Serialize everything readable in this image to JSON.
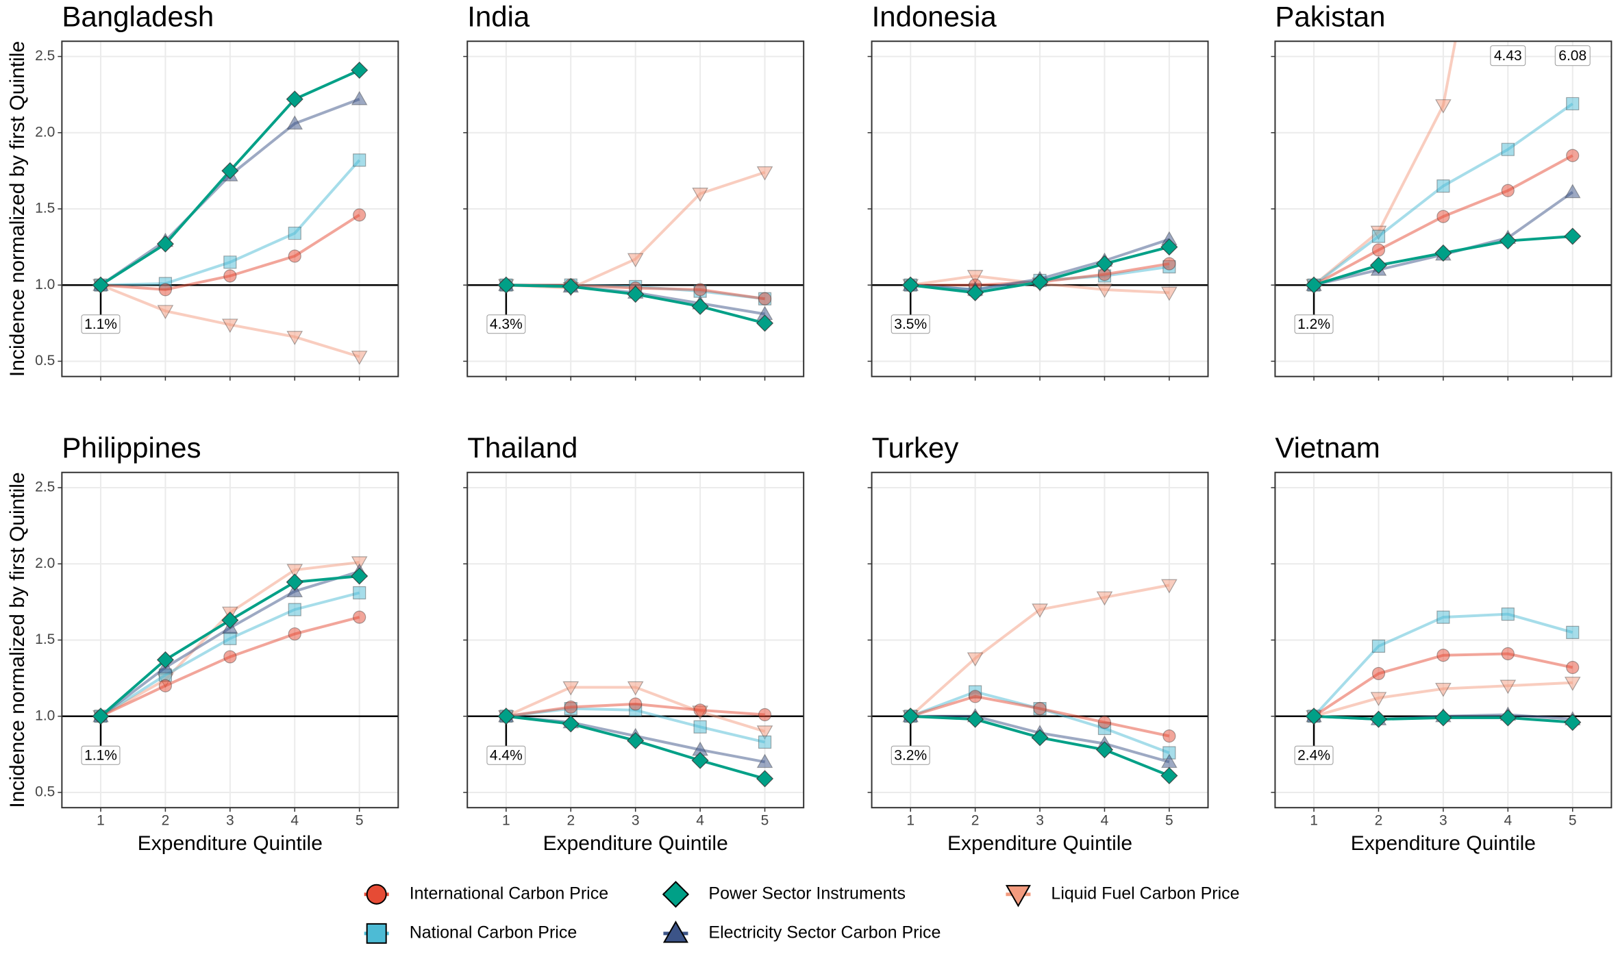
{
  "chart_data": {
    "type": "line",
    "y_label": "Incidence normalized by first Quintile",
    "x_label": "Expenditure Quintile",
    "x": [
      1,
      2,
      3,
      4,
      5
    ],
    "xlim": [
      0.4,
      5.6
    ],
    "xticks": [
      1,
      2,
      3,
      4,
      5
    ],
    "ylim": [
      0.4,
      2.6
    ],
    "yticks": [
      0.5,
      {
        "value": 1,
        "label": "1.0"
      },
      1.5,
      {
        "value": 2,
        "label": "2.0"
      },
      2.5
    ],
    "reference_line": 1,
    "grid": true,
    "series": [
      {
        "name": "International Carbon Price",
        "color": "#e64b35",
        "opacity": 0.5,
        "marker": "circle"
      },
      {
        "name": "National Carbon Price",
        "color": "#4dbbd5",
        "opacity": 0.5,
        "marker": "square"
      },
      {
        "name": "Power Sector Instruments",
        "color": "#00a087",
        "opacity": 1,
        "marker": "diamond"
      },
      {
        "name": "Electricity Sector Carbon Price",
        "color": "#3c5488",
        "opacity": 0.5,
        "marker": "triangle-up"
      },
      {
        "name": "Liquid Fuel Carbon Price",
        "color": "#f39b7f",
        "opacity": 0.5,
        "marker": "triangle-down"
      }
    ],
    "panels": [
      {
        "title": "Bangladesh",
        "base_label": "1.1%",
        "series_values": [
          [
            1,
            0.97,
            1.06,
            1.19,
            1.46
          ],
          [
            1,
            1.01,
            1.15,
            1.34,
            1.82
          ],
          [
            1,
            1.27,
            1.75,
            2.22,
            2.41
          ],
          [
            1,
            1.29,
            1.72,
            2.06,
            2.22
          ],
          [
            1,
            0.83,
            0.74,
            0.66,
            0.53
          ]
        ]
      },
      {
        "title": "India",
        "base_label": "4.3%",
        "series_values": [
          [
            1,
            1.0,
            0.98,
            0.97,
            0.91
          ],
          [
            1,
            1.0,
            0.99,
            0.96,
            0.91
          ],
          [
            1,
            0.99,
            0.94,
            0.86,
            0.75
          ],
          [
            1,
            0.99,
            0.95,
            0.88,
            0.81
          ],
          [
            1,
            0.98,
            1.17,
            1.6,
            1.74
          ]
        ]
      },
      {
        "title": "Indonesia",
        "base_label": "3.5%",
        "series_values": [
          [
            1,
            1.0,
            1.02,
            1.07,
            1.14
          ],
          [
            1,
            0.97,
            1.03,
            1.06,
            1.12
          ],
          [
            1,
            0.95,
            1.02,
            1.14,
            1.25
          ],
          [
            1,
            0.97,
            1.04,
            1.16,
            1.3
          ],
          [
            1,
            1.06,
            1.01,
            0.97,
            0.95
          ]
        ]
      },
      {
        "title": "Pakistan",
        "base_label": "1.2%",
        "series_values": [
          [
            1,
            1.23,
            1.45,
            1.62,
            1.85
          ],
          [
            1,
            1.32,
            1.65,
            1.89,
            2.19
          ],
          [
            1,
            1.13,
            1.21,
            1.29,
            1.32
          ],
          [
            1,
            1.1,
            1.2,
            1.31,
            1.61
          ],
          [
            1,
            1.35,
            2.18,
            4.43,
            6.08
          ]
        ]
      },
      {
        "title": "Philippines",
        "base_label": "1.1%",
        "series_values": [
          [
            1,
            1.2,
            1.39,
            1.54,
            1.65
          ],
          [
            1,
            1.27,
            1.51,
            1.7,
            1.81
          ],
          [
            1,
            1.37,
            1.63,
            1.88,
            1.92
          ],
          [
            1,
            1.32,
            1.58,
            1.82,
            1.95
          ],
          [
            1,
            1.24,
            1.68,
            1.96,
            2.01
          ]
        ]
      },
      {
        "title": "Thailand",
        "base_label": "4.4%",
        "series_values": [
          [
            1,
            1.06,
            1.08,
            1.04,
            1.01
          ],
          [
            1,
            1.05,
            1.04,
            0.93,
            0.83
          ],
          [
            1,
            0.95,
            0.84,
            0.71,
            0.59
          ],
          [
            1,
            0.96,
            0.87,
            0.78,
            0.7
          ],
          [
            1,
            1.19,
            1.19,
            1.03,
            0.9
          ]
        ]
      },
      {
        "title": "Turkey",
        "base_label": "3.2%",
        "series_values": [
          [
            1,
            1.13,
            1.05,
            0.96,
            0.87
          ],
          [
            1,
            1.16,
            1.05,
            0.92,
            0.76
          ],
          [
            1,
            0.98,
            0.86,
            0.78,
            0.61
          ],
          [
            1,
            1.0,
            0.89,
            0.82,
            0.7
          ],
          [
            1,
            1.38,
            1.7,
            1.78,
            1.86
          ]
        ]
      },
      {
        "title": "Vietnam",
        "base_label": "2.4%",
        "series_values": [
          [
            1,
            1.28,
            1.4,
            1.41,
            1.32
          ],
          [
            1,
            1.46,
            1.65,
            1.67,
            1.55
          ],
          [
            1,
            0.98,
            0.99,
            0.99,
            0.96
          ],
          [
            1,
            0.98,
            1.0,
            1.01,
            0.98
          ],
          [
            1,
            1.12,
            1.18,
            1.2,
            1.22
          ]
        ]
      }
    ]
  }
}
